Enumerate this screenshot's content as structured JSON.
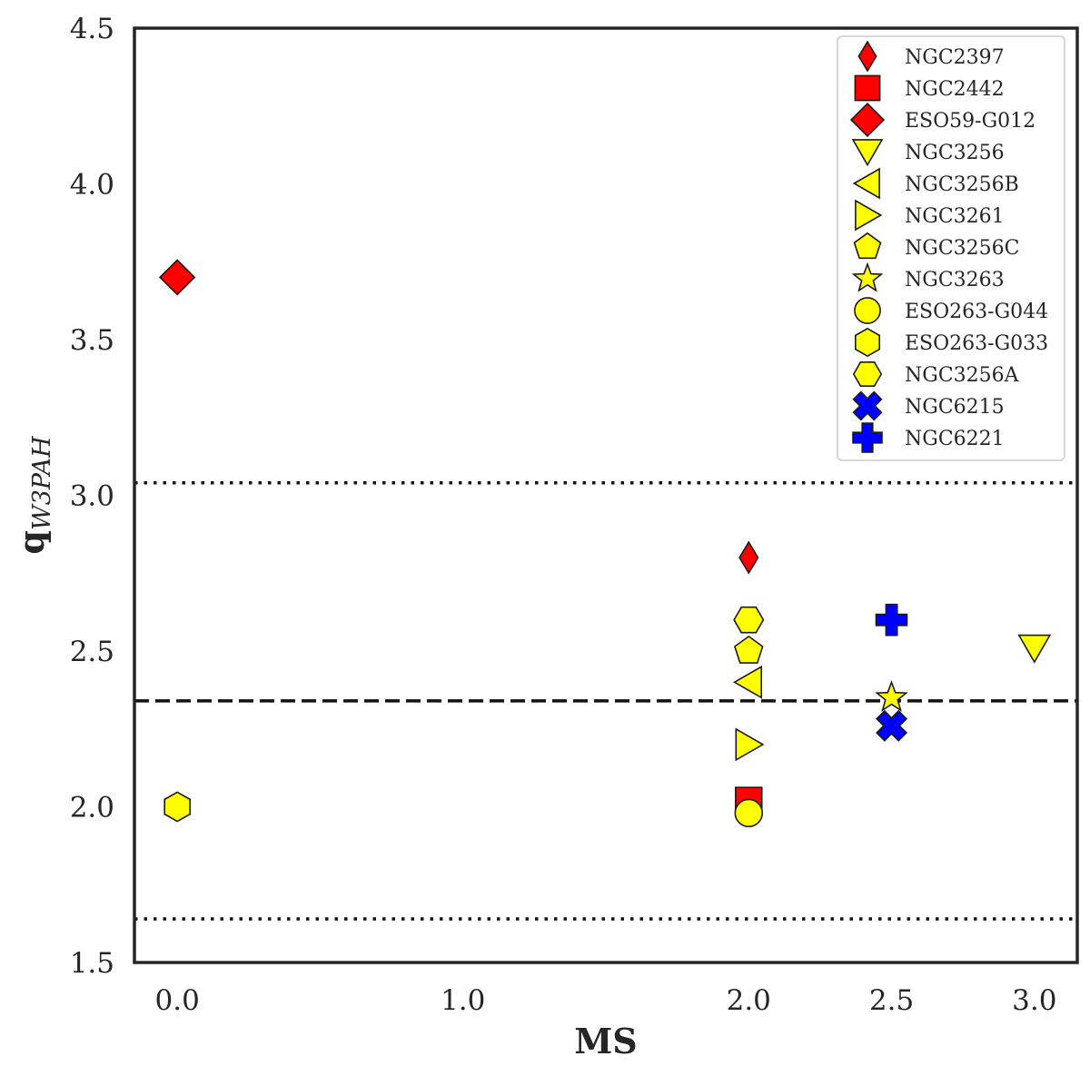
{
  "chart_data": {
    "type": "scatter",
    "title": "",
    "xlabel": "MS",
    "ylabel_main": "q",
    "ylabel_sub": "W3PAH",
    "xlim": [
      -0.15,
      3.15
    ],
    "ylim": [
      1.5,
      4.5
    ],
    "xtick_values": [
      0.0,
      1.0,
      2.0,
      2.5,
      3.0
    ],
    "xtick_labels": [
      "0.0",
      "1.0",
      "2.0",
      "2.5",
      "3.0"
    ],
    "ytick_values": [
      1.5,
      2.0,
      2.5,
      3.0,
      3.5,
      4.0,
      4.5
    ],
    "ytick_labels": [
      "1.5",
      "2.0",
      "2.5",
      "3.0",
      "3.5",
      "4.0",
      "4.5"
    ],
    "grid": false,
    "legend_position": "top-right",
    "reference_lines": [
      {
        "style": "dashed",
        "y": 2.34
      },
      {
        "style": "dotted",
        "y": 3.04
      },
      {
        "style": "dotted",
        "y": 1.64
      }
    ],
    "series": [
      {
        "name": "NGC2397",
        "marker": "thin-diamond",
        "color": "#ff0000",
        "points": [
          {
            "x": 2.0,
            "y": 2.8
          }
        ]
      },
      {
        "name": "NGC2442",
        "marker": "square",
        "color": "#ff0000",
        "points": [
          {
            "x": 2.0,
            "y": 2.02
          }
        ]
      },
      {
        "name": "ESO59-G012",
        "marker": "diamond",
        "color": "#ff0000",
        "points": [
          {
            "x": 0.0,
            "y": 3.7
          }
        ]
      },
      {
        "name": "NGC3256",
        "marker": "triangle-down",
        "color": "#ffff00",
        "points": [
          {
            "x": 3.0,
            "y": 2.51
          }
        ]
      },
      {
        "name": "NGC3256B",
        "marker": "triangle-left",
        "color": "#ffff00",
        "points": [
          {
            "x": 2.0,
            "y": 2.4
          }
        ]
      },
      {
        "name": "NGC3261",
        "marker": "triangle-right",
        "color": "#ffff00",
        "points": [
          {
            "x": 2.0,
            "y": 2.2
          }
        ]
      },
      {
        "name": "NGC3256C",
        "marker": "pentagon",
        "color": "#ffff00",
        "points": [
          {
            "x": 2.0,
            "y": 2.5
          }
        ]
      },
      {
        "name": "NGC3263",
        "marker": "star",
        "color": "#ffff00",
        "points": [
          {
            "x": 2.5,
            "y": 2.35
          }
        ]
      },
      {
        "name": "ESO263-G044",
        "marker": "circle",
        "color": "#ffff00",
        "points": [
          {
            "x": 2.0,
            "y": 1.98
          }
        ]
      },
      {
        "name": "ESO263-G033",
        "marker": "hexagon",
        "color": "#ffff00",
        "points": [
          {
            "x": 0.0,
            "y": 2.0
          }
        ]
      },
      {
        "name": "NGC3256A",
        "marker": "hexagon-flat",
        "color": "#ffff00",
        "points": [
          {
            "x": 2.0,
            "y": 2.6
          }
        ]
      },
      {
        "name": "NGC6215",
        "marker": "x-filled",
        "color": "#0000ff",
        "points": [
          {
            "x": 2.5,
            "y": 2.26
          }
        ]
      },
      {
        "name": "NGC6221",
        "marker": "plus-filled",
        "color": "#0000ff",
        "points": [
          {
            "x": 2.5,
            "y": 2.6
          }
        ]
      }
    ]
  }
}
